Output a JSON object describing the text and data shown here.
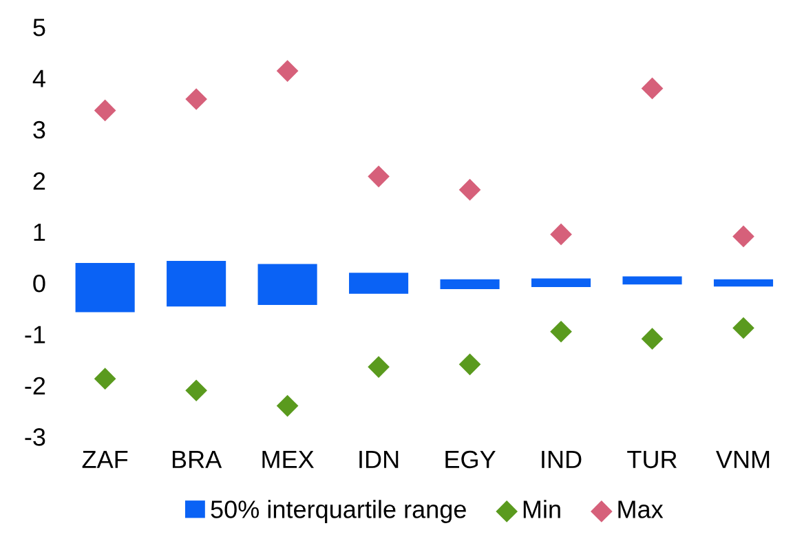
{
  "chart_data": {
    "type": "bar",
    "categories": [
      "ZAF",
      "BRA",
      "MEX",
      "IDN",
      "EGY",
      "IND",
      "TUR",
      "VNM"
    ],
    "series": [
      {
        "name": "50% interquartile range",
        "color": "#0a62f5",
        "base": [
          -0.57,
          -0.46,
          -0.43,
          -0.21,
          -0.12,
          -0.08,
          -0.03,
          -0.07
        ],
        "values": [
          0.96,
          0.89,
          0.8,
          0.41,
          0.19,
          0.17,
          0.16,
          0.14
        ]
      },
      {
        "name": "Min",
        "type": "scatter",
        "color": "#5a9a1e",
        "marker": "diamond",
        "values": [
          -1.87,
          -2.1,
          -2.4,
          -1.64,
          -1.59,
          -0.95,
          -1.09,
          -0.88
        ]
      },
      {
        "name": "Max",
        "type": "scatter",
        "color": "#d6607a",
        "marker": "diamond",
        "values": [
          3.37,
          3.59,
          4.14,
          2.08,
          1.82,
          0.95,
          3.8,
          0.91
        ]
      }
    ],
    "ylim": [
      -3,
      5
    ],
    "yticks": [
      {
        "value": -3,
        "label": "-3"
      },
      {
        "value": -2,
        "label": "-2"
      },
      {
        "value": -1,
        "label": "-1"
      },
      0,
      1,
      2,
      3,
      4,
      5
    ],
    "grid": false,
    "legend": "bottom"
  }
}
